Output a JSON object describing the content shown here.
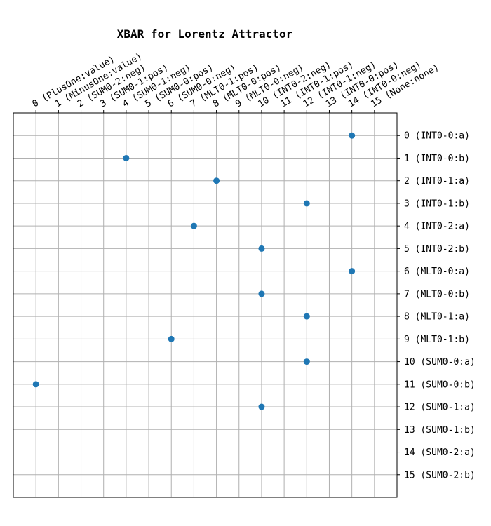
{
  "chart_data": {
    "type": "scatter",
    "title": "XBAR for Lorentz Attractor",
    "xlabel": "",
    "ylabel": "",
    "x_categories": [
      "0 (PlusOne:value)",
      "1 (MinusOne:value)",
      "2 (SUM0-2:neg)",
      "3 (SUM0-1:pos)",
      "4 (SUM0-1:neg)",
      "5 (SUM0-0:pos)",
      "6 (SUM0-0:neg)",
      "7 (MLT0-1:pos)",
      "8 (MLT0-0:pos)",
      "9 (MLT0-0:neg)",
      "10 (INT0-2:neg)",
      "11 (INT0-1:pos)",
      "12 (INT0-1:neg)",
      "13 (INT0-0:pos)",
      "14 (INT0-0:neg)",
      "15 (None:none)"
    ],
    "y_categories": [
      "0 (INT0-0:a)",
      "1 (INT0-0:b)",
      "2 (INT0-1:a)",
      "3 (INT0-1:b)",
      "4 (INT0-2:a)",
      "5 (INT0-2:b)",
      "6 (MLT0-0:a)",
      "7 (MLT0-0:b)",
      "8 (MLT0-1:a)",
      "9 (MLT0-1:b)",
      "10 (SUM0-0:a)",
      "11 (SUM0-0:b)",
      "12 (SUM0-1:a)",
      "13 (SUM0-1:b)",
      "14 (SUM0-2:a)",
      "15 (SUM0-2:b)"
    ],
    "points": [
      {
        "x": 14,
        "y": 0
      },
      {
        "x": 4,
        "y": 1
      },
      {
        "x": 8,
        "y": 2
      },
      {
        "x": 12,
        "y": 3
      },
      {
        "x": 7,
        "y": 4
      },
      {
        "x": 10,
        "y": 5
      },
      {
        "x": 14,
        "y": 6
      },
      {
        "x": 10,
        "y": 7
      },
      {
        "x": 12,
        "y": 8
      },
      {
        "x": 6,
        "y": 9
      },
      {
        "x": 12,
        "y": 10
      },
      {
        "x": 0,
        "y": 11
      },
      {
        "x": 10,
        "y": 12
      }
    ],
    "xlim": [
      -1,
      16
    ],
    "ylim": [
      -1,
      16
    ],
    "y_inverted": true,
    "x_ticks_position": "top",
    "y_ticks_position": "right",
    "grid": true,
    "marker_color": "#1f77b4",
    "grid_color": "#b0b0b0"
  }
}
